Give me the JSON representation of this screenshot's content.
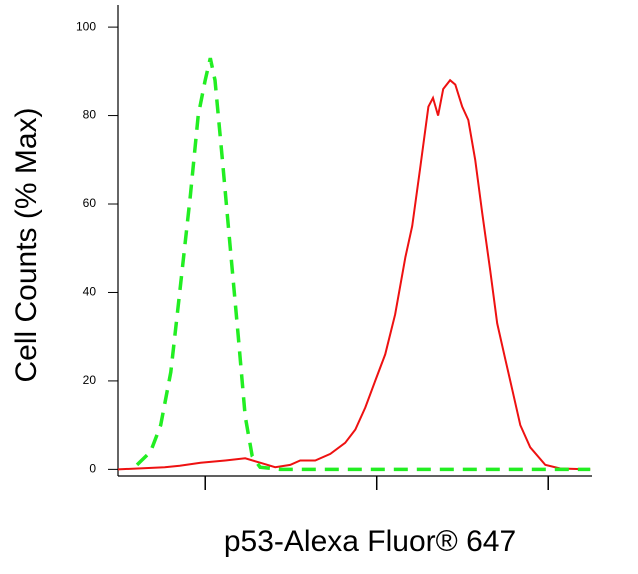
{
  "chart_data": {
    "type": "line",
    "xlabel": "p53-Alexa Fluor® 647",
    "ylabel": "Cell Counts (% Max)",
    "xscale": "log",
    "xlim": [
      3.1,
      1800
    ],
    "xticks": [
      10,
      100,
      1000
    ],
    "ylim": [
      -1.5,
      105
    ],
    "yticks": [
      0,
      20,
      40,
      60,
      80,
      100
    ],
    "series": [
      {
        "color": "#ee1111",
        "linestyle": "solid",
        "x": [
          3.1,
          5.8,
          7.1,
          9.4,
          13.1,
          17.1,
          20.9,
          25.6,
          31.3,
          35.8,
          43.8,
          53.6,
          65.5,
          75,
          85.8,
          98,
          112,
          128,
          147,
          161,
          179,
          200,
          213,
          228,
          244,
          268,
          287,
          315,
          342,
          375,
          412,
          459,
          504,
          561,
          617,
          687,
          785,
          961,
          1175,
          1758
        ],
        "values": [
          0,
          0.5,
          0.8,
          1.5,
          2,
          2.5,
          1.5,
          0.5,
          1,
          2,
          2,
          3.5,
          6,
          9,
          14,
          20,
          26,
          35,
          48,
          55,
          68,
          82,
          84,
          80,
          86,
          88,
          87,
          82,
          79,
          70,
          58,
          45,
          33,
          25,
          18,
          10,
          5,
          1,
          0.2,
          0
        ]
      },
      {
        "color": "#22ee22",
        "linestyle": "dashed",
        "x": [
          4.0,
          4.8,
          5.5,
          6.3,
          7.1,
          8.2,
          9.1,
          10,
          10.7,
          11.4,
          12.6,
          14.0,
          15.6,
          17.1,
          18.8,
          20.9,
          27.4,
          1758
        ],
        "values": [
          1,
          4,
          10,
          22,
          40,
          62,
          80,
          88,
          93,
          88,
          70,
          50,
          30,
          12,
          3,
          0.5,
          0,
          0
        ]
      }
    ]
  }
}
